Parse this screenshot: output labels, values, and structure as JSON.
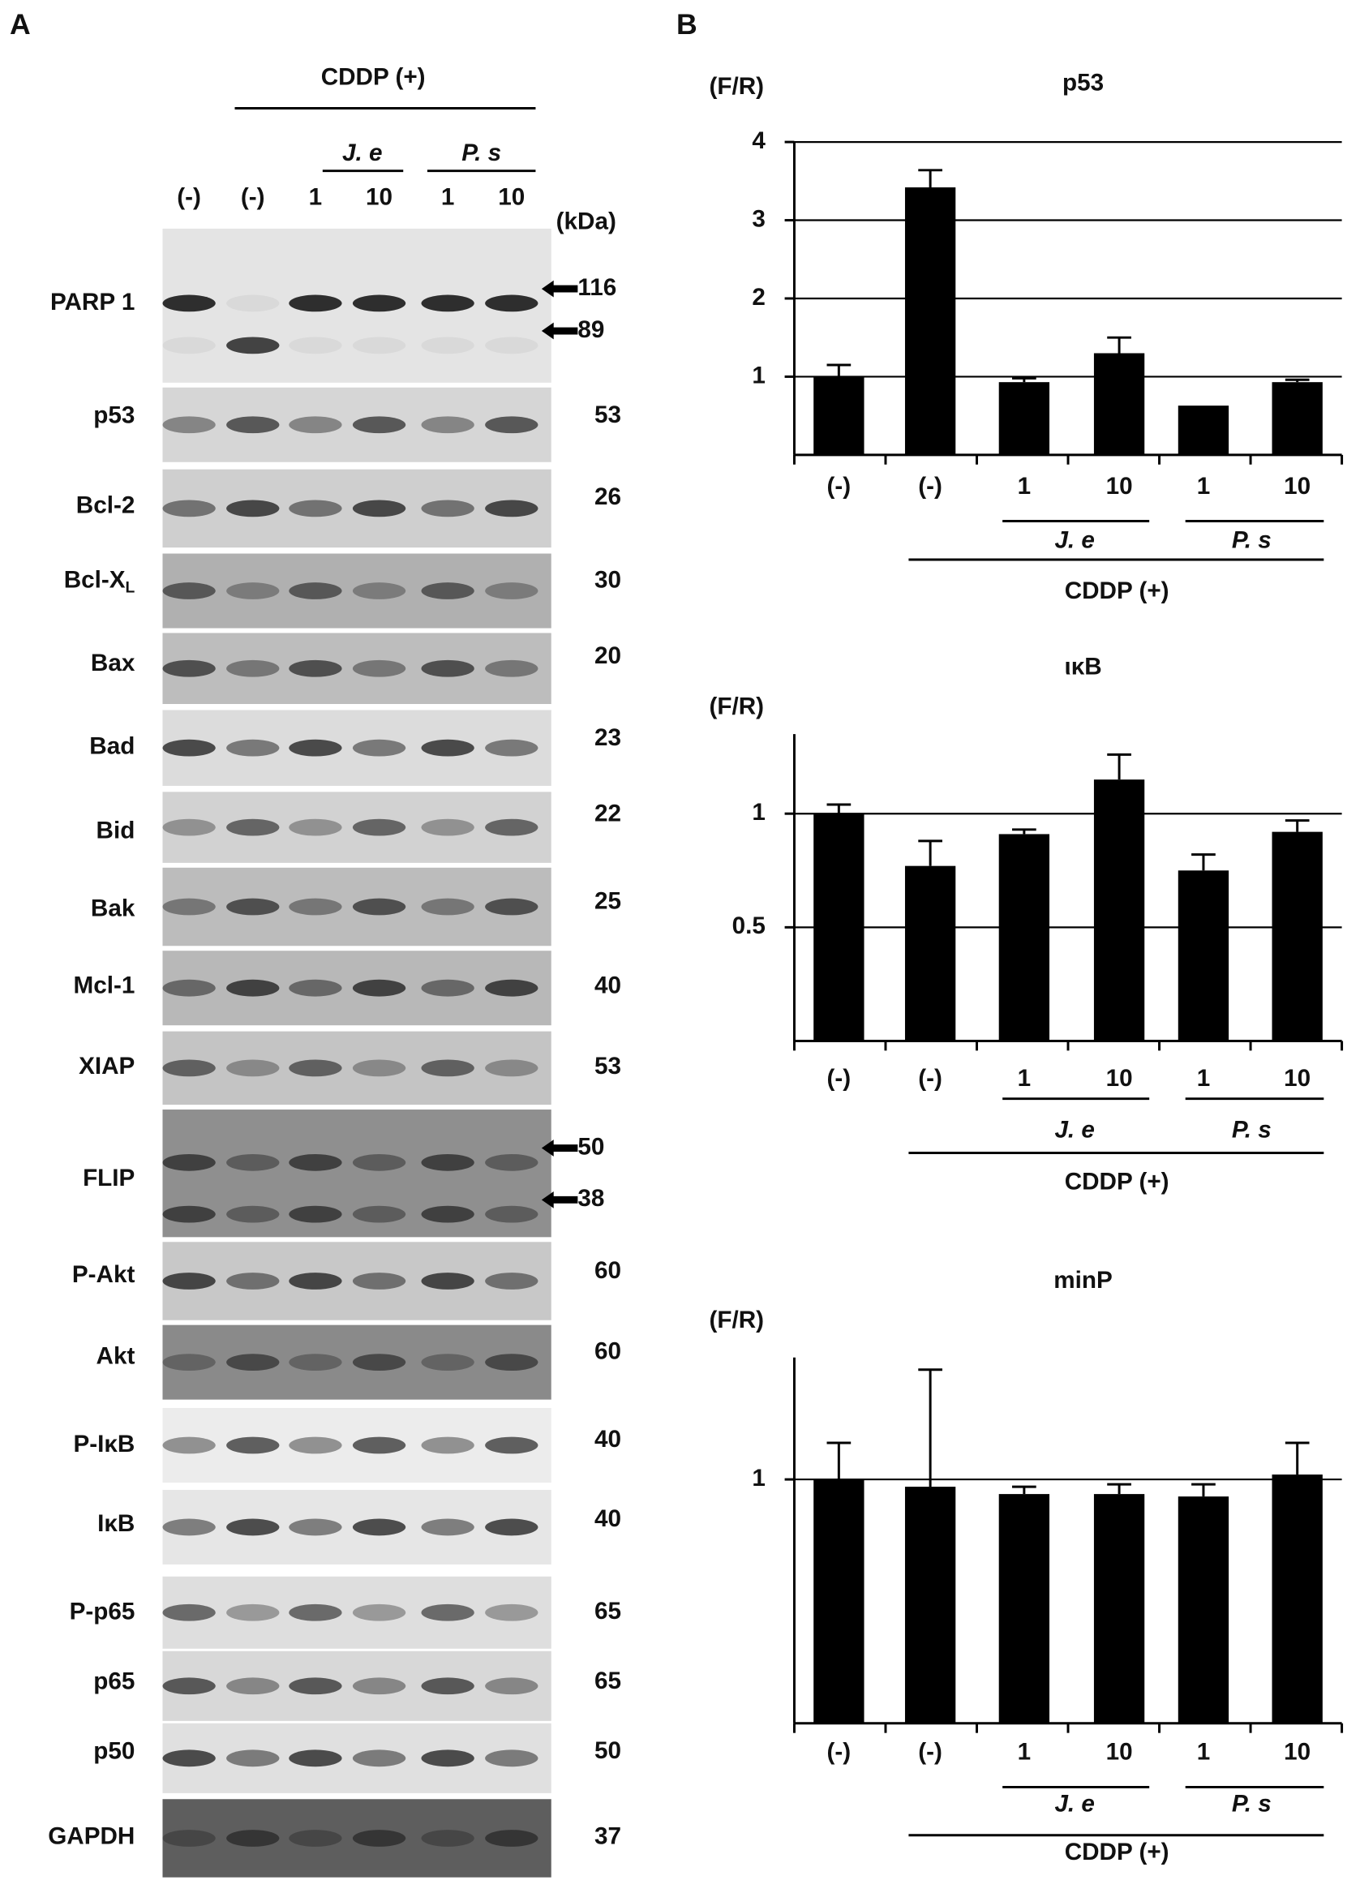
{
  "panel_a": {
    "label": "A",
    "treatment": "CDDP (+)",
    "groups": [
      "J. e",
      "P. s"
    ],
    "lanes": [
      "(-)",
      "(-)",
      "1",
      "10",
      "1",
      "10"
    ],
    "unit": "(kDa)",
    "blots": [
      {
        "label": "PARP 1",
        "kda": [
          "116",
          "89"
        ]
      },
      {
        "label": "p53",
        "kda": [
          "53"
        ]
      },
      {
        "label": "Bcl-2",
        "kda": [
          "26"
        ]
      },
      {
        "label": "Bcl-X",
        "subscript": "L",
        "kda": [
          "30"
        ]
      },
      {
        "label": "Bax",
        "kda": [
          "20"
        ]
      },
      {
        "label": "Bad",
        "kda": [
          "23"
        ]
      },
      {
        "label": "Bid",
        "kda": [
          "22"
        ]
      },
      {
        "label": "Bak",
        "kda": [
          "25"
        ]
      },
      {
        "label": "Mcl-1",
        "kda": [
          "40"
        ]
      },
      {
        "label": "XIAP",
        "kda": [
          "53"
        ]
      },
      {
        "label": "FLIP",
        "kda": [
          "50",
          "38"
        ]
      },
      {
        "label": "P-Akt",
        "kda": [
          "60"
        ]
      },
      {
        "label": "Akt",
        "kda": [
          "60"
        ]
      },
      {
        "label": "P-IκB",
        "kda": [
          "40"
        ]
      },
      {
        "label": "IκB",
        "kda": [
          "40"
        ]
      },
      {
        "label": "P-p65",
        "kda": [
          "65"
        ]
      },
      {
        "label": "p65",
        "kda": [
          "65"
        ]
      },
      {
        "label": "p50",
        "kda": [
          "50"
        ]
      },
      {
        "label": "GAPDH",
        "kda": [
          "37"
        ]
      }
    ]
  },
  "panel_b": {
    "label": "B"
  },
  "chart_data": [
    {
      "type": "bar",
      "title": "p53",
      "ylabel": "(F/R)",
      "categories": [
        "(-)",
        "(-)",
        "1",
        "10",
        "1",
        "10"
      ],
      "groups": [
        "J. e",
        "P. s"
      ],
      "supergroup": "CDDP (+)",
      "values": [
        1.0,
        3.42,
        0.93,
        1.3,
        0.63,
        0.93
      ],
      "errors": [
        0.15,
        0.22,
        0.05,
        0.2,
        0,
        0.03
      ],
      "color": "#000000",
      "ylim": [
        0,
        4
      ],
      "yticks": [
        1,
        2,
        3,
        4
      ],
      "grid": true
    },
    {
      "type": "bar",
      "title": "ικB",
      "ylabel": "(F/R)",
      "categories": [
        "(-)",
        "(-)",
        "1",
        "10",
        "1",
        "10"
      ],
      "groups": [
        "J. e",
        "P. s"
      ],
      "supergroup": "CDDP (+)",
      "values": [
        1.0,
        0.77,
        0.91,
        1.15,
        0.75,
        0.92
      ],
      "errors": [
        0.04,
        0.11,
        0.02,
        0.11,
        0.07,
        0.05
      ],
      "color": "#000000",
      "ylim": [
        0,
        1.35
      ],
      "yticks": [
        0.5,
        1
      ],
      "grid": true
    },
    {
      "type": "bar",
      "title": "minP",
      "ylabel": "(F/R)",
      "categories": [
        "(-)",
        "(-)",
        "1",
        "10",
        "1",
        "10"
      ],
      "groups": [
        "J. e",
        "P. s"
      ],
      "supergroup": "CDDP (+)",
      "values": [
        1.0,
        0.97,
        0.94,
        0.94,
        0.93,
        1.02
      ],
      "errors": [
        0.15,
        0.48,
        0.03,
        0.04,
        0.05,
        0.13
      ],
      "color": "#000000",
      "ylim": [
        0,
        1.5
      ],
      "yticks": [
        1
      ],
      "grid": true
    }
  ]
}
